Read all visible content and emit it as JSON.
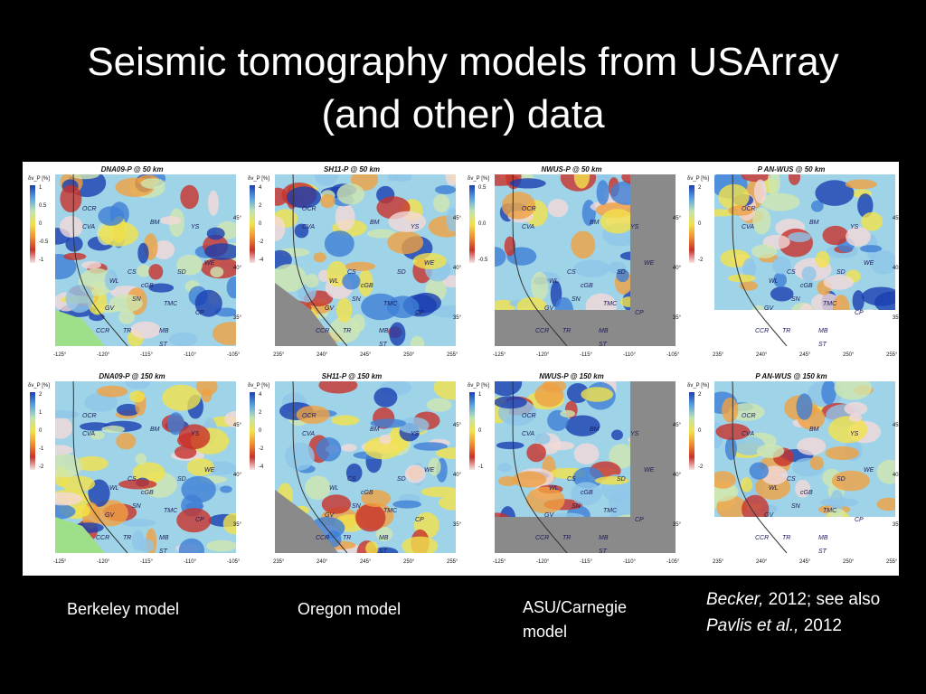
{
  "slide": {
    "title_line1": "Seismic tomography models from USArray",
    "title_line2": "(and other)  data"
  },
  "panels": [
    {
      "title": "DNA09-P @ 50 km",
      "unit": "δv_P [%]",
      "ticks": [
        "1",
        "0.5",
        "0",
        "-0.5",
        "-1"
      ],
      "lon": [
        "-125°",
        "-120°",
        "-115°",
        "-110°",
        "-105°"
      ],
      "lat": [
        "45°",
        "40°",
        "35°"
      ],
      "masked": "none"
    },
    {
      "title": "SH11-P @ 50 km",
      "unit": "δv_P [%]",
      "ticks": [
        "4",
        "2",
        "0",
        "-2",
        "-4"
      ],
      "lon": [
        "235°",
        "240°",
        "245°",
        "250°",
        "255°"
      ],
      "lat": [
        "45°",
        "40°",
        "35°"
      ],
      "masked": "sw"
    },
    {
      "title": "NWUS-P @ 50 km",
      "unit": "δv_P [%]",
      "ticks": [
        "0.5",
        "0.0",
        "-0.5"
      ],
      "lon": [
        "-125°",
        "-120°",
        "-115°",
        "-110°",
        "-105°"
      ],
      "lat": [
        "45°",
        "40°",
        "35°"
      ],
      "masked": "se"
    },
    {
      "title": "P    AN-WUS @ 50 km",
      "unit": "δv_P [%]",
      "ticks": [
        "2",
        "0",
        "-2"
      ],
      "lon": [
        "235°",
        "240°",
        "245°",
        "250°",
        "255°"
      ],
      "lat": [
        "45°",
        "40°",
        "35°"
      ],
      "masked": "s"
    },
    {
      "title": "DNA09-P @ 150 km",
      "unit": "δv_P [%]",
      "ticks": [
        "2",
        "1",
        "0",
        "-1",
        "-2"
      ],
      "lon": [
        "-125°",
        "-120°",
        "-115°",
        "-110°",
        "-105°"
      ],
      "lat": [
        "45°",
        "40°",
        "35°"
      ],
      "masked": "none"
    },
    {
      "title": "SH11-P @ 150 km",
      "unit": "δv_P [%]",
      "ticks": [
        "4",
        "2",
        "0",
        "-2",
        "-4"
      ],
      "lon": [
        "235°",
        "240°",
        "245°",
        "250°",
        "255°"
      ],
      "lat": [
        "45°",
        "40°",
        "35°"
      ],
      "masked": "sw"
    },
    {
      "title": "NWUS-P @ 150 km",
      "unit": "δv_P [%]",
      "ticks": [
        "1",
        "0",
        "-1"
      ],
      "lon": [
        "-125°",
        "-120°",
        "-115°",
        "-110°",
        "-105°"
      ],
      "lat": [
        "45°",
        "40°",
        "35°"
      ],
      "masked": "se"
    },
    {
      "title": "P    AN-WUS @ 150 km",
      "unit": "δv_P [%]",
      "ticks": [
        "2",
        "0",
        "-2"
      ],
      "lon": [
        "235°",
        "240°",
        "245°",
        "250°",
        "255°"
      ],
      "lat": [
        "45°",
        "40°",
        "35°"
      ],
      "masked": "s"
    }
  ],
  "map_labels": [
    "CVA",
    "BM",
    "YS",
    "CS",
    "SD",
    "WE",
    "cGB",
    "SN",
    "TMC",
    "CP",
    "GV",
    "CCR",
    "TR",
    "MB",
    "ST",
    "OCR",
    "WL"
  ],
  "captions": {
    "berkeley": "Berkeley model",
    "oregon": "Oregon model",
    "asu_line1": "ASU/Carnegie",
    "asu_line2": "model"
  },
  "citation": {
    "author1": "Becker,",
    "rest1": " 2012; see also",
    "author2": "Pavlis et al.,",
    "rest2": " 2012"
  },
  "colors": {
    "background": "#000000",
    "fast": "#1a3fb0",
    "slow": "#c8322a",
    "neutral": "#f2e24a",
    "mask": "#8a8a8a"
  }
}
